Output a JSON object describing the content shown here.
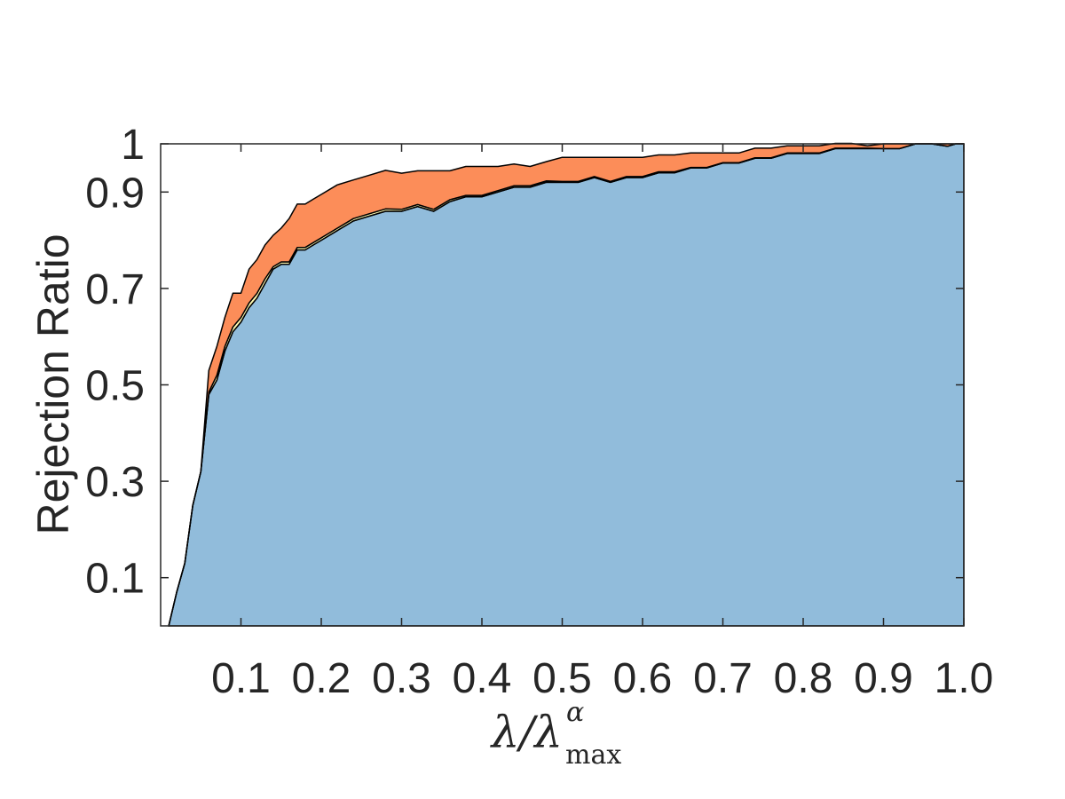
{
  "chart_data": {
    "type": "area",
    "title": "",
    "xlabel": {
      "symbol": "λ/λ",
      "superscript": "α",
      "subscript": "max"
    },
    "ylabel": "Rejection Ratio",
    "xlim": [
      0.0,
      1.0
    ],
    "ylim": [
      0.0,
      1.0
    ],
    "x_ticks": [
      0.1,
      0.2,
      0.3,
      0.4,
      0.5,
      0.6,
      0.7,
      0.8,
      0.9,
      1.0
    ],
    "x_tick_labels": [
      "0.1",
      "0.2",
      "0.3",
      "0.4",
      "0.5",
      "0.6",
      "0.7",
      "0.8",
      "0.9",
      "1.0"
    ],
    "y_ticks": [
      0.1,
      0.3,
      0.5,
      0.7,
      0.9,
      1.0
    ],
    "y_tick_labels": [
      "0.1",
      "0.3",
      "0.5",
      "0.7",
      "0.9",
      "1"
    ],
    "grid": false,
    "stacked": true,
    "x": [
      0.01,
      0.02,
      0.03,
      0.04,
      0.05,
      0.06,
      0.07,
      0.08,
      0.09,
      0.1,
      0.11,
      0.12,
      0.13,
      0.14,
      0.15,
      0.16,
      0.17,
      0.18,
      0.19,
      0.2,
      0.22,
      0.24,
      0.26,
      0.28,
      0.3,
      0.32,
      0.34,
      0.36,
      0.38,
      0.4,
      0.42,
      0.44,
      0.46,
      0.48,
      0.5,
      0.52,
      0.54,
      0.56,
      0.58,
      0.6,
      0.62,
      0.64,
      0.66,
      0.68,
      0.7,
      0.72,
      0.74,
      0.76,
      0.78,
      0.8,
      0.82,
      0.84,
      0.86,
      0.88,
      0.9,
      0.92,
      0.94,
      0.96,
      0.98,
      0.99,
      1.0
    ],
    "series": [
      {
        "color": "#91bcdb",
        "values": [
          0.0,
          0.07,
          0.13,
          0.25,
          0.32,
          0.48,
          0.51,
          0.57,
          0.61,
          0.63,
          0.66,
          0.68,
          0.71,
          0.74,
          0.75,
          0.75,
          0.78,
          0.78,
          0.79,
          0.8,
          0.82,
          0.84,
          0.85,
          0.86,
          0.86,
          0.87,
          0.86,
          0.88,
          0.89,
          0.89,
          0.9,
          0.91,
          0.91,
          0.92,
          0.92,
          0.92,
          0.93,
          0.92,
          0.93,
          0.93,
          0.94,
          0.94,
          0.95,
          0.95,
          0.96,
          0.96,
          0.97,
          0.97,
          0.98,
          0.98,
          0.98,
          0.99,
          0.99,
          0.99,
          0.99,
          0.99,
          1.0,
          1.0,
          0.995,
          1.0,
          1.0
        ]
      },
      {
        "color": "#fff9b0",
        "values": [
          0.0,
          0.0,
          0.0,
          0.0,
          0.0,
          0.005,
          0.01,
          0.01,
          0.01,
          0.01,
          0.01,
          0.01,
          0.01,
          0.005,
          0.005,
          0.005,
          0.005,
          0.005,
          0.005,
          0.005,
          0.005,
          0.005,
          0.005,
          0.005,
          0.004,
          0.004,
          0.004,
          0.004,
          0.003,
          0.003,
          0.003,
          0.003,
          0.003,
          0.003,
          0.002,
          0.002,
          0.002,
          0.002,
          0.002,
          0.002,
          0.002,
          0.002,
          0.001,
          0.001,
          0.001,
          0.001,
          0.001,
          0.001,
          0.001,
          0.001,
          0.001,
          0.001,
          0.001,
          0.001,
          0.0,
          0.0,
          0.0,
          0.0,
          0.0,
          0.0,
          0.0
        ]
      },
      {
        "color": "#fc8d59",
        "values": [
          0.0,
          0.0,
          0.0,
          0.0,
          0.0,
          0.045,
          0.06,
          0.06,
          0.07,
          0.05,
          0.07,
          0.07,
          0.07,
          0.065,
          0.07,
          0.09,
          0.09,
          0.09,
          0.09,
          0.09,
          0.09,
          0.08,
          0.08,
          0.08,
          0.075,
          0.07,
          0.08,
          0.06,
          0.06,
          0.06,
          0.05,
          0.045,
          0.04,
          0.04,
          0.05,
          0.05,
          0.04,
          0.05,
          0.04,
          0.04,
          0.035,
          0.035,
          0.03,
          0.03,
          0.02,
          0.02,
          0.02,
          0.02,
          0.015,
          0.015,
          0.015,
          0.01,
          0.01,
          0.005,
          0.01,
          0.01,
          0.0,
          0.0,
          0.005,
          0.0,
          0.0
        ]
      }
    ]
  }
}
